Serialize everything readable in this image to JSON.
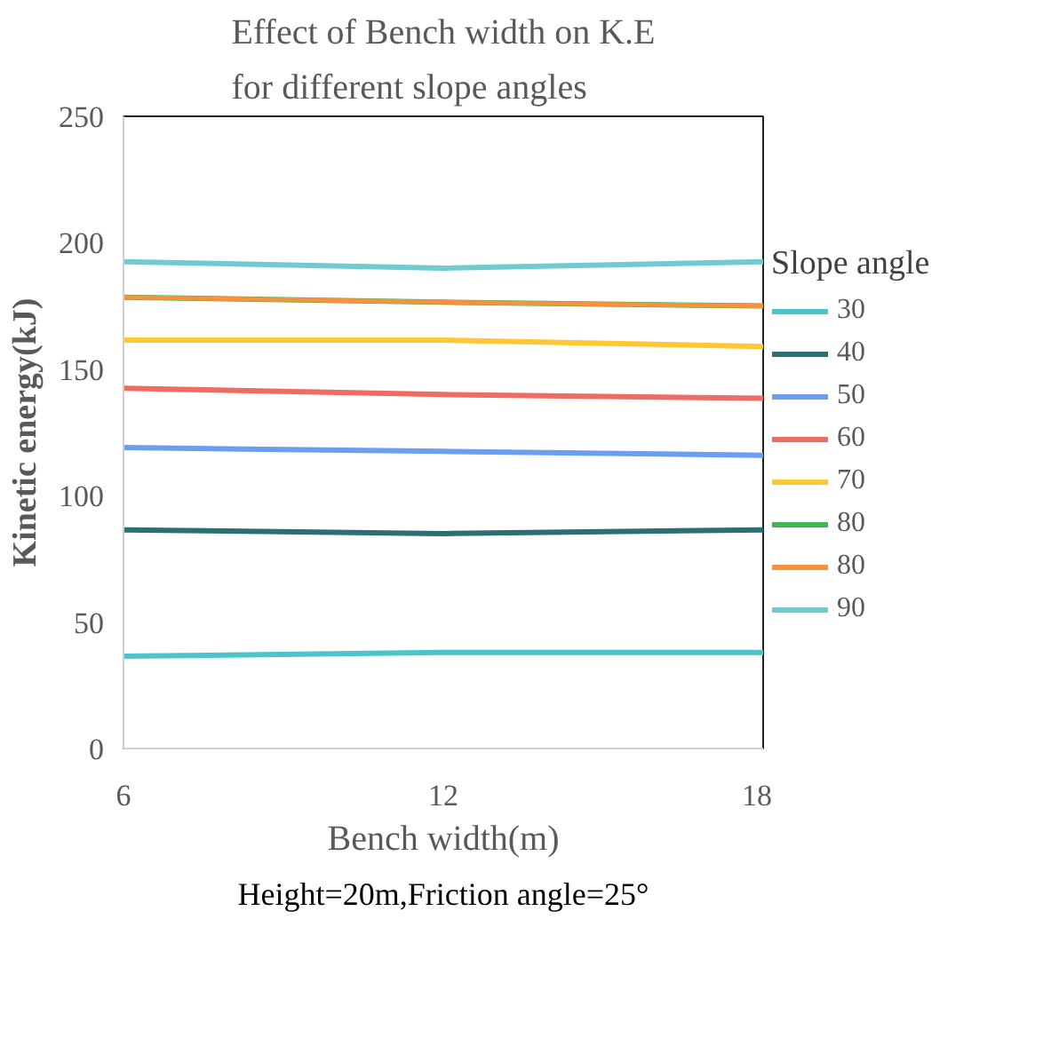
{
  "chart_data": {
    "type": "line",
    "title": "Effect of Bench width on K.E for different slope angles",
    "xlabel": "Bench width(m)",
    "ylabel": "Kinetic energy(kJ)",
    "legend_title": "Slope angle",
    "annotations": [
      "Height=20m,Friction angle=25°"
    ],
    "x": [
      6,
      12,
      18
    ],
    "xlim": [
      6,
      18
    ],
    "xticks": [
      6,
      12,
      18
    ],
    "ylim": [
      0,
      250
    ],
    "yticks": [
      0,
      50,
      100,
      150,
      200,
      250
    ],
    "grid": false,
    "legend": "right",
    "marker": "none",
    "line_style": "solid",
    "series": [
      {
        "name": "30",
        "color": "#4bc4cc",
        "values": [
          36.5,
          38,
          38
        ]
      },
      {
        "name": "40",
        "color": "#2a6f73",
        "values": [
          86.5,
          85,
          86.5
        ]
      },
      {
        "name": "50",
        "color": "#6a9ef0",
        "values": [
          119,
          117.5,
          116
        ]
      },
      {
        "name": "60",
        "color": "#ef6b63",
        "values": [
          142.5,
          140,
          138.5
        ]
      },
      {
        "name": "70",
        "color": "#ffc733",
        "values": [
          161.5,
          161.5,
          159
        ]
      },
      {
        "name": "80",
        "color": "#41b84f",
        "values": [
          178.5,
          176.5,
          175
        ]
      },
      {
        "name": "80",
        "color": "#f7913d",
        "values": [
          178.5,
          176.5,
          175
        ]
      },
      {
        "name": "90",
        "color": "#70cbd0",
        "values": [
          192.5,
          190,
          192.5
        ]
      }
    ]
  }
}
